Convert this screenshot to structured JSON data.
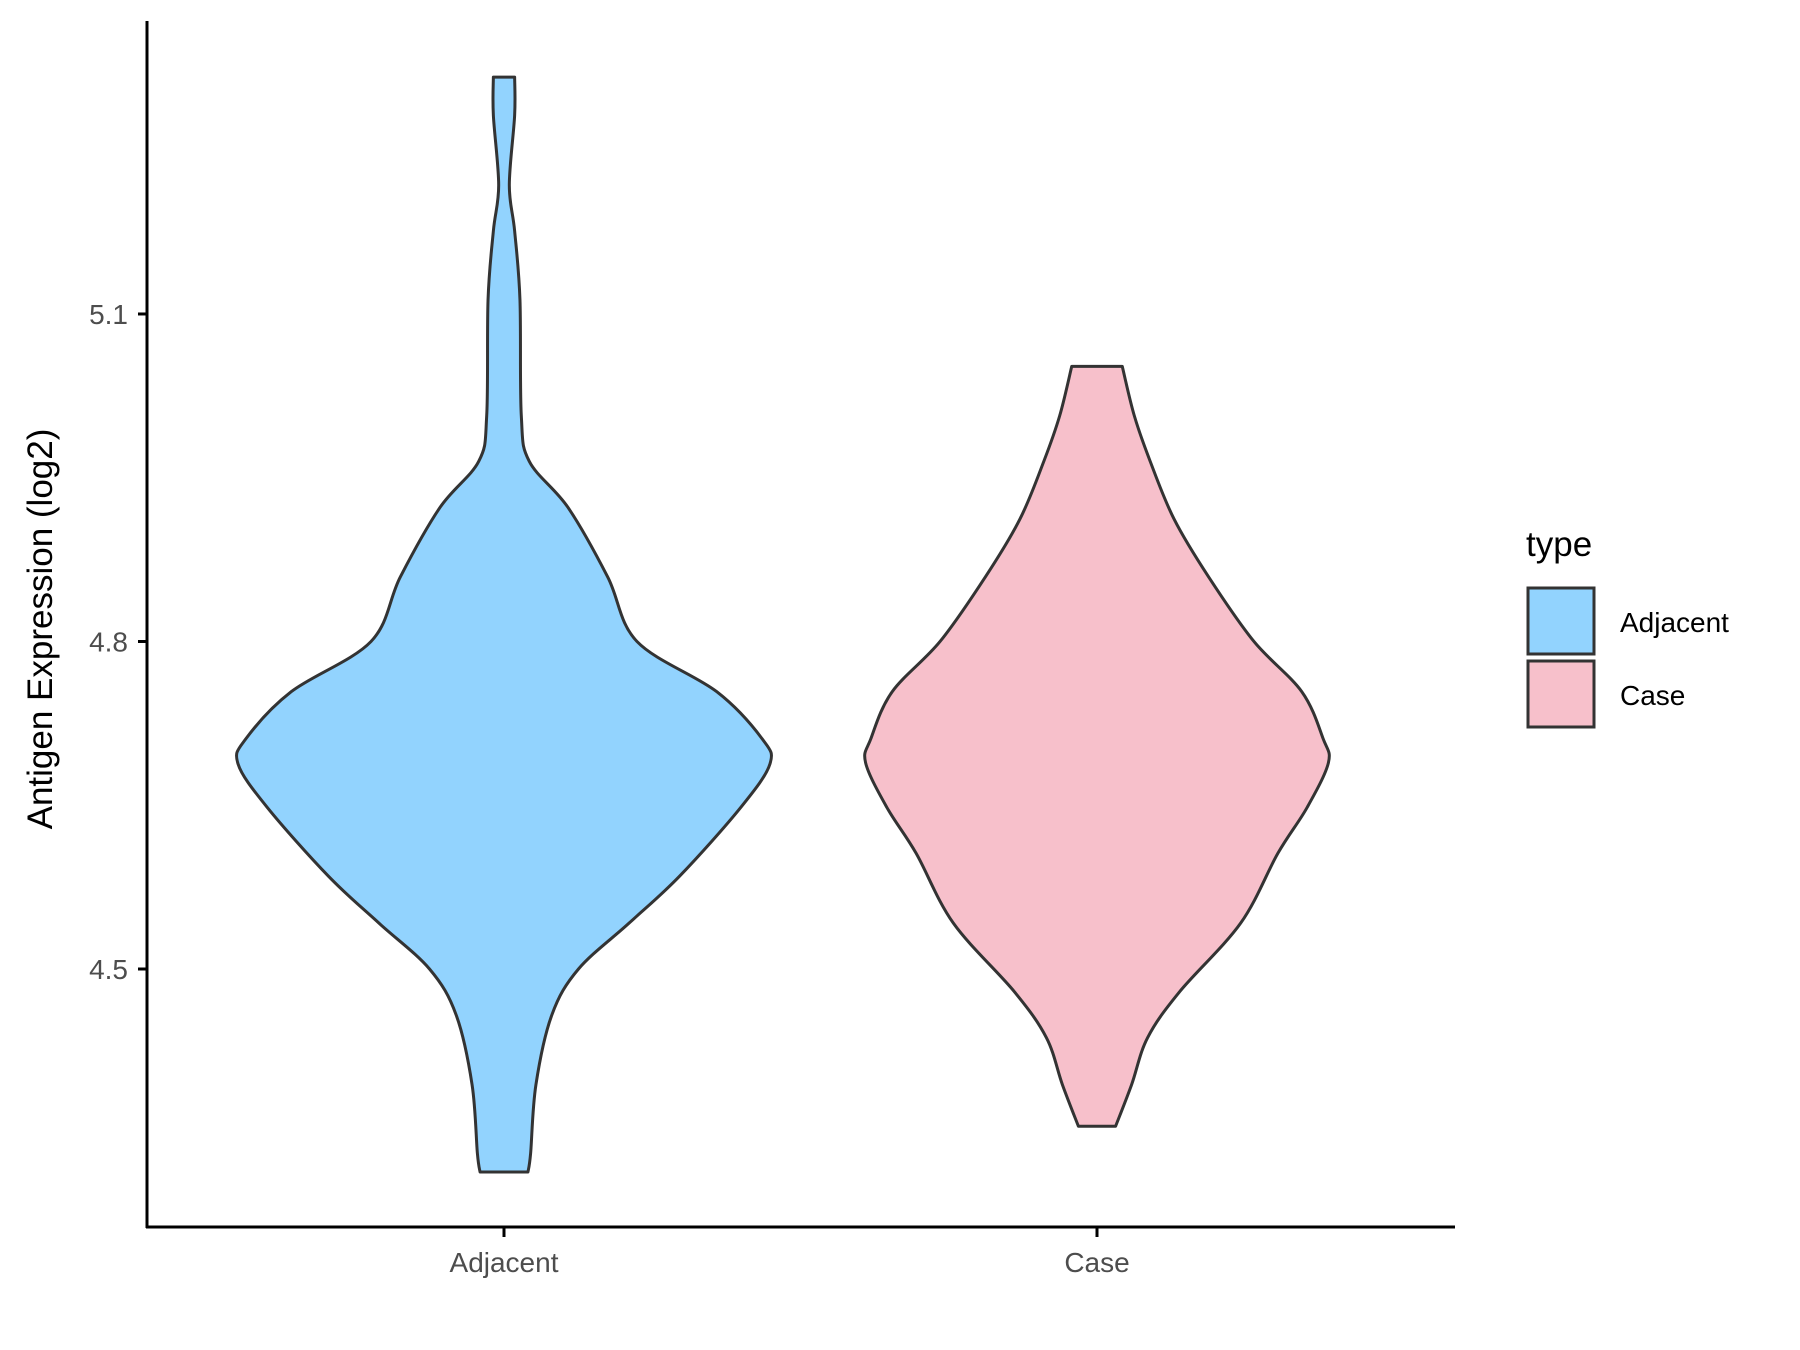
{
  "chart_data": {
    "type": "violin",
    "title": "",
    "xlabel": "",
    "ylabel": "Antigen Expression (log2)",
    "categories": [
      "Adjacent",
      "Case"
    ],
    "yticks": [
      4.5,
      4.8,
      5.1
    ],
    "ytick_labels": [
      "4.5",
      "4.8",
      "5.1"
    ],
    "ylim": [
      4.27,
      5.37
    ],
    "grid": false,
    "legend": {
      "title": "type",
      "placement": "right",
      "entries": [
        "Adjacent",
        "Case"
      ]
    },
    "series": [
      {
        "name": "Adjacent",
        "color": "#92D3FE",
        "min": 4.314,
        "max": 5.317,
        "density_profile": [
          [
            5.317,
            0.04
          ],
          [
            5.282,
            0.04
          ],
          [
            5.218,
            0.02
          ],
          [
            5.176,
            0.04
          ],
          [
            5.113,
            0.06
          ],
          [
            5.007,
            0.065
          ],
          [
            4.965,
            0.095
          ],
          [
            4.923,
            0.24
          ],
          [
            4.859,
            0.39
          ],
          [
            4.8,
            0.5
          ],
          [
            4.754,
            0.8
          ],
          [
            4.711,
            0.97
          ],
          [
            4.688,
            1.0
          ],
          [
            4.648,
            0.89
          ],
          [
            4.585,
            0.66
          ],
          [
            4.542,
            0.47
          ],
          [
            4.5,
            0.28
          ],
          [
            4.458,
            0.18
          ],
          [
            4.394,
            0.12
          ],
          [
            4.331,
            0.1
          ],
          [
            4.314,
            0.09
          ]
        ]
      },
      {
        "name": "Case",
        "color": "#F7C0CB",
        "min": 4.356,
        "max": 5.052,
        "density_profile": [
          [
            5.052,
            0.095
          ],
          [
            5.007,
            0.14
          ],
          [
            4.965,
            0.2
          ],
          [
            4.912,
            0.29
          ],
          [
            4.859,
            0.42
          ],
          [
            4.8,
            0.59
          ],
          [
            4.754,
            0.77
          ],
          [
            4.711,
            0.85
          ],
          [
            4.689,
            0.87
          ],
          [
            4.648,
            0.79
          ],
          [
            4.606,
            0.68
          ],
          [
            4.542,
            0.54
          ],
          [
            4.479,
            0.31
          ],
          [
            4.437,
            0.19
          ],
          [
            4.394,
            0.13
          ],
          [
            4.356,
            0.07
          ]
        ]
      }
    ]
  }
}
